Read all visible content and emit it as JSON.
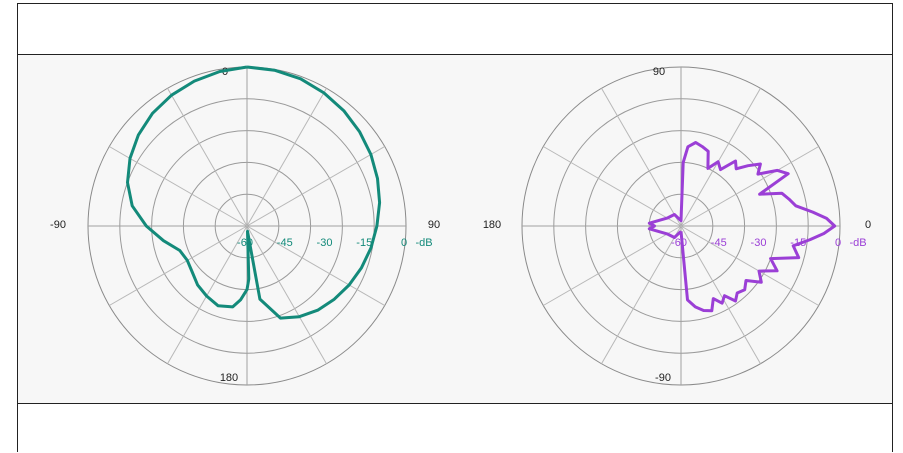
{
  "chart_data": [
    {
      "type": "polar-line",
      "units": "-dB",
      "radial_ticks": [
        "-60",
        "-45",
        "-30",
        "-15",
        "0"
      ],
      "radial_range": [
        -60,
        0
      ],
      "angle_labels": {
        "top": "0",
        "right": "90",
        "bottom": "180",
        "left": "-90"
      },
      "grid": true,
      "color": "#138a7a",
      "series": [
        {
          "points": [
            [
              0,
              0
            ],
            [
              10,
              -0.3
            ],
            [
              20,
              -0.9
            ],
            [
              30,
              -2
            ],
            [
              40,
              -3.2
            ],
            [
              50,
              -4.6
            ],
            [
              60,
              -6
            ],
            [
              70,
              -7.6
            ],
            [
              80,
              -9.2
            ],
            [
              90,
              -11
            ],
            [
              100,
              -12.5
            ],
            [
              110,
              -14
            ],
            [
              120,
              -15.5
            ],
            [
              130,
              -17
            ],
            [
              140,
              -18.5
            ],
            [
              150,
              -20.5
            ],
            [
              160,
              -23
            ],
            [
              170,
              -32
            ],
            [
              175,
              -58
            ],
            [
              178,
              -40
            ],
            [
              180,
              -36
            ],
            [
              185,
              -32
            ],
            [
              190,
              -29
            ],
            [
              200,
              -28
            ],
            [
              210,
              -29.5
            ],
            [
              220,
              -31
            ],
            [
              230,
              -33
            ],
            [
              240,
              -34
            ],
            [
              250,
              -33
            ],
            [
              260,
              -28
            ],
            [
              270,
              -22
            ],
            [
              280,
              -16
            ],
            [
              290,
              -12
            ],
            [
              300,
              -9
            ],
            [
              310,
              -6.5
            ],
            [
              320,
              -4.5
            ],
            [
              330,
              -3
            ],
            [
              340,
              -1.8
            ],
            [
              350,
              -0.8
            ],
            [
              360,
              0
            ]
          ]
        }
      ]
    },
    {
      "type": "polar-line",
      "units": "-dB",
      "radial_ticks": [
        "-60",
        "-45",
        "-30",
        "-15",
        "0"
      ],
      "radial_range": [
        -60,
        0
      ],
      "angle_labels": {
        "top": "90",
        "right": "0",
        "bottom": "-90",
        "left": "180"
      },
      "grid": true,
      "color": "#9b3fd6",
      "series": [
        {
          "points": [
            [
              -90,
              -58
            ],
            [
              -85,
              -32
            ],
            [
              -80,
              -29
            ],
            [
              -75,
              -27
            ],
            [
              -70,
              -26
            ],
            [
              -66,
              -30
            ],
            [
              -62,
              -27
            ],
            [
              -58,
              -29
            ],
            [
              -54,
              -25
            ],
            [
              -50,
              -27
            ],
            [
              -45,
              -26
            ],
            [
              -40,
              -28
            ],
            [
              -35,
              -23
            ],
            [
              -30,
              -26
            ],
            [
              -25,
              -20
            ],
            [
              -20,
              -24
            ],
            [
              -15,
              -14
            ],
            [
              -10,
              -17
            ],
            [
              -6,
              -11
            ],
            [
              -3,
              -6
            ],
            [
              0,
              -2
            ],
            [
              3,
              -5
            ],
            [
              6,
              -10
            ],
            [
              10,
              -16
            ],
            [
              14,
              -18
            ],
            [
              18,
              -20
            ],
            [
              22,
              -28
            ],
            [
              26,
              -15
            ],
            [
              30,
              -18
            ],
            [
              34,
              -25
            ],
            [
              38,
              -22
            ],
            [
              42,
              -26
            ],
            [
              46,
              -30
            ],
            [
              50,
              -28
            ],
            [
              55,
              -34
            ],
            [
              60,
              -32
            ],
            [
              65,
              -36
            ],
            [
              70,
              -30
            ],
            [
              75,
              -29
            ],
            [
              80,
              -28
            ],
            [
              85,
              -30
            ],
            [
              88,
              -36
            ],
            [
              90,
              -58
            ],
            [
              120,
              -55
            ],
            [
              150,
              -54
            ],
            [
              175,
              -48
            ],
            [
              180,
              -50
            ],
            [
              185,
              -48
            ],
            [
              210,
              -54
            ],
            [
              240,
              -55
            ],
            [
              270,
              -58
            ]
          ]
        }
      ]
    }
  ]
}
